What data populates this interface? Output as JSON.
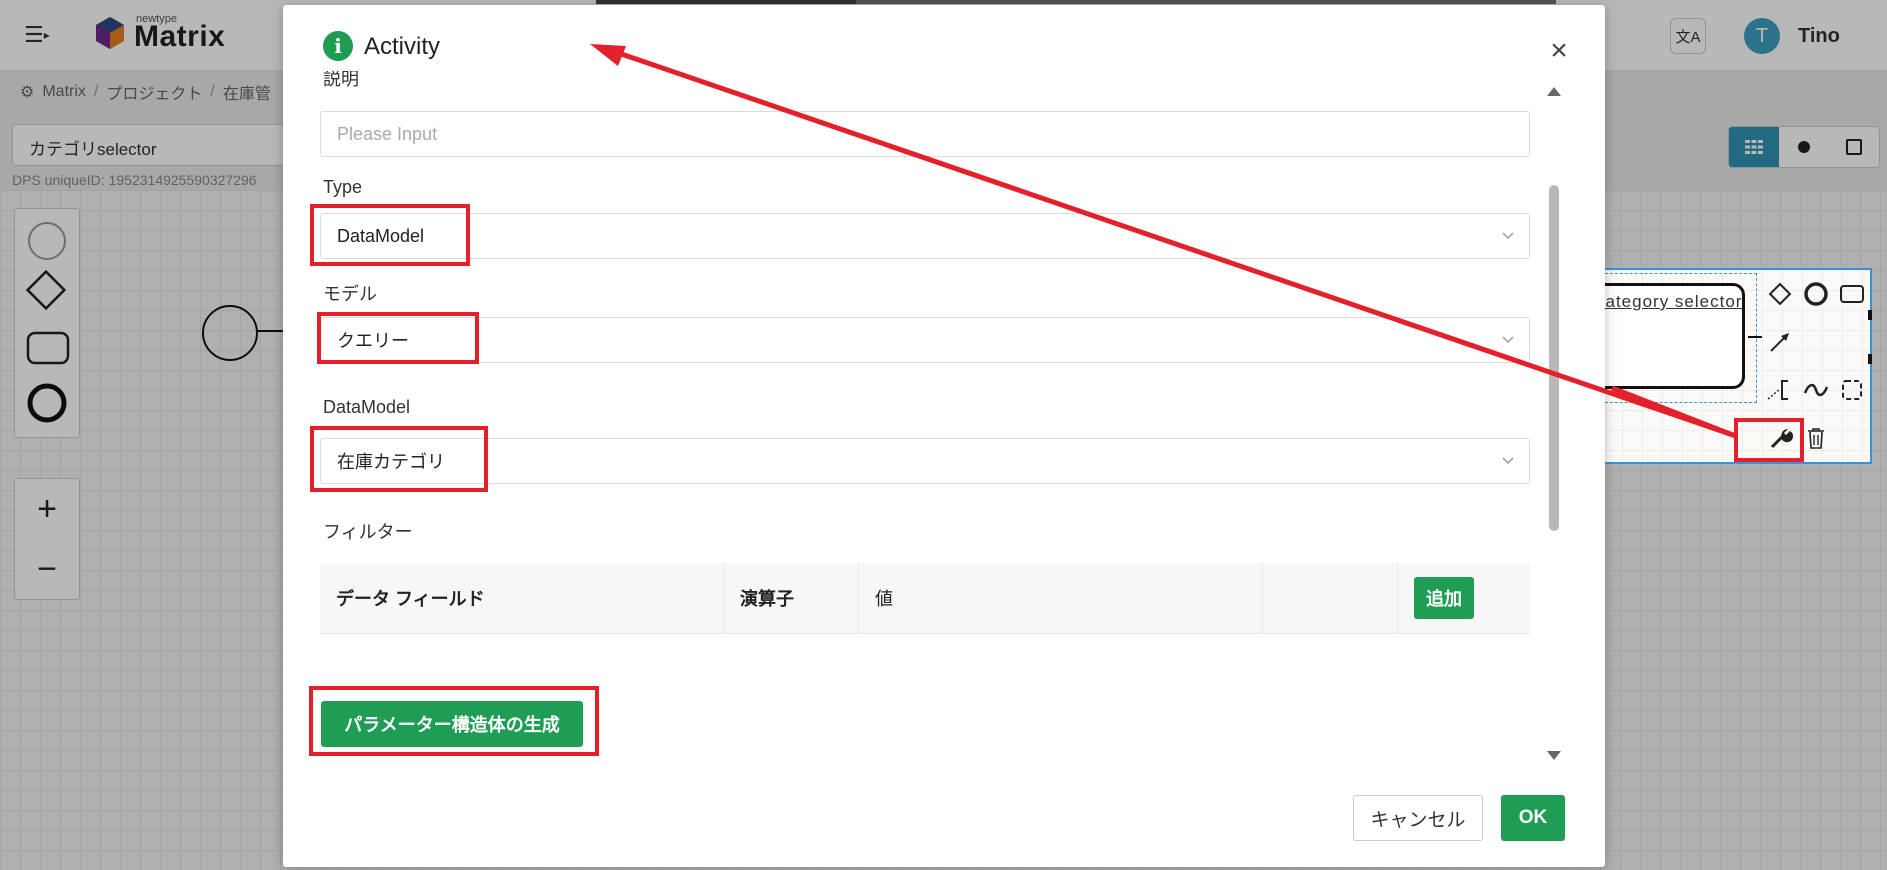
{
  "app": {
    "logo_small": "newtype",
    "logo_text": "Matrix",
    "translate_icon": "translate-icon",
    "user_initial": "T",
    "user_name": "Tino"
  },
  "breadcrumb": [
    "Matrix",
    "プロジェクト",
    "在庫管"
  ],
  "diagram": {
    "name_value": "カテゴリselector",
    "unique_id_label": "DPS uniqueID:",
    "unique_id": "1952314925590327296",
    "zoom_in": "+",
    "zoom_out": "−"
  },
  "context_pad": {
    "task_label": "category selector",
    "icons": [
      "diamond-icon",
      "circle-icon",
      "square-icon",
      "connect-arrow-icon",
      "annotation-icon",
      "wave-icon",
      "dashed-square-icon",
      "wrench-icon",
      "trash-icon"
    ]
  },
  "modal": {
    "title": "Activity",
    "info_icon": "i",
    "close_icon": "×",
    "cut_label": "説明",
    "description_placeholder": "Please Input",
    "type_label": "Type",
    "type_value": "DataModel",
    "model_label": "モデル",
    "model_value": "クエリー",
    "datamodel_label": "DataModel",
    "datamodel_value": "在庫カテゴリ",
    "filter_label": "フィルター",
    "filter_table": {
      "col_field": "データ フィールド",
      "col_operator": "演算子",
      "col_value": "値",
      "add_button": "追加"
    },
    "generate_button": "パラメーター構造体の生成",
    "cancel_button": "キャンセル",
    "ok_button": "OK"
  },
  "colors": {
    "primary_green": "#1f9d55",
    "annotation_red": "#e4202a",
    "accent_blue": "#2f93b4"
  }
}
